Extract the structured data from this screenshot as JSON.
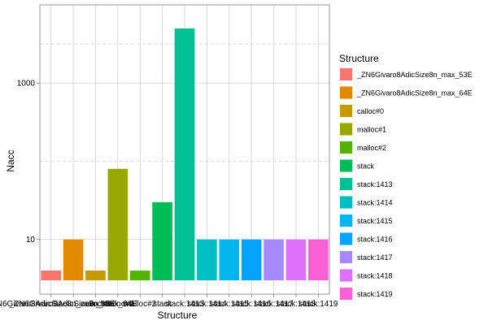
{
  "chart_data": {
    "type": "bar",
    "xlabel": "Structure",
    "ylabel": "Nacc",
    "yscale": "log10",
    "ylim": [
      2,
      10000
    ],
    "y_tick_labels": [
      {
        "value": 10,
        "label": "10"
      },
      {
        "value": 1000,
        "label": "1000"
      }
    ],
    "y_minor_gridlines": [
      100,
      3162
    ],
    "grid": true,
    "legend_title": "Structure",
    "legend_position": "right",
    "categories": [
      "_ZN6Givaro8AdicSize8n_max_53E",
      "_ZN6Givaro8AdicSize8n_max_64E",
      "calloc#0",
      "malloc#1",
      "malloc#2",
      "stack",
      "stack:1413",
      "stack:1414",
      "stack:1415",
      "stack:1416",
      "stack:1417",
      "stack:1418",
      "stack:1419"
    ],
    "values": [
      4,
      10,
      4,
      80,
      4,
      30,
      5000,
      10,
      10,
      10,
      10,
      10,
      10
    ],
    "colors": [
      "#F8766D",
      "#E38900",
      "#C49A00",
      "#99A800",
      "#53B400",
      "#00BC56",
      "#00C094",
      "#00BFC4",
      "#00B6EB",
      "#06A4FF",
      "#A58AFF",
      "#DF70F8",
      "#FB61D7"
    ]
  }
}
